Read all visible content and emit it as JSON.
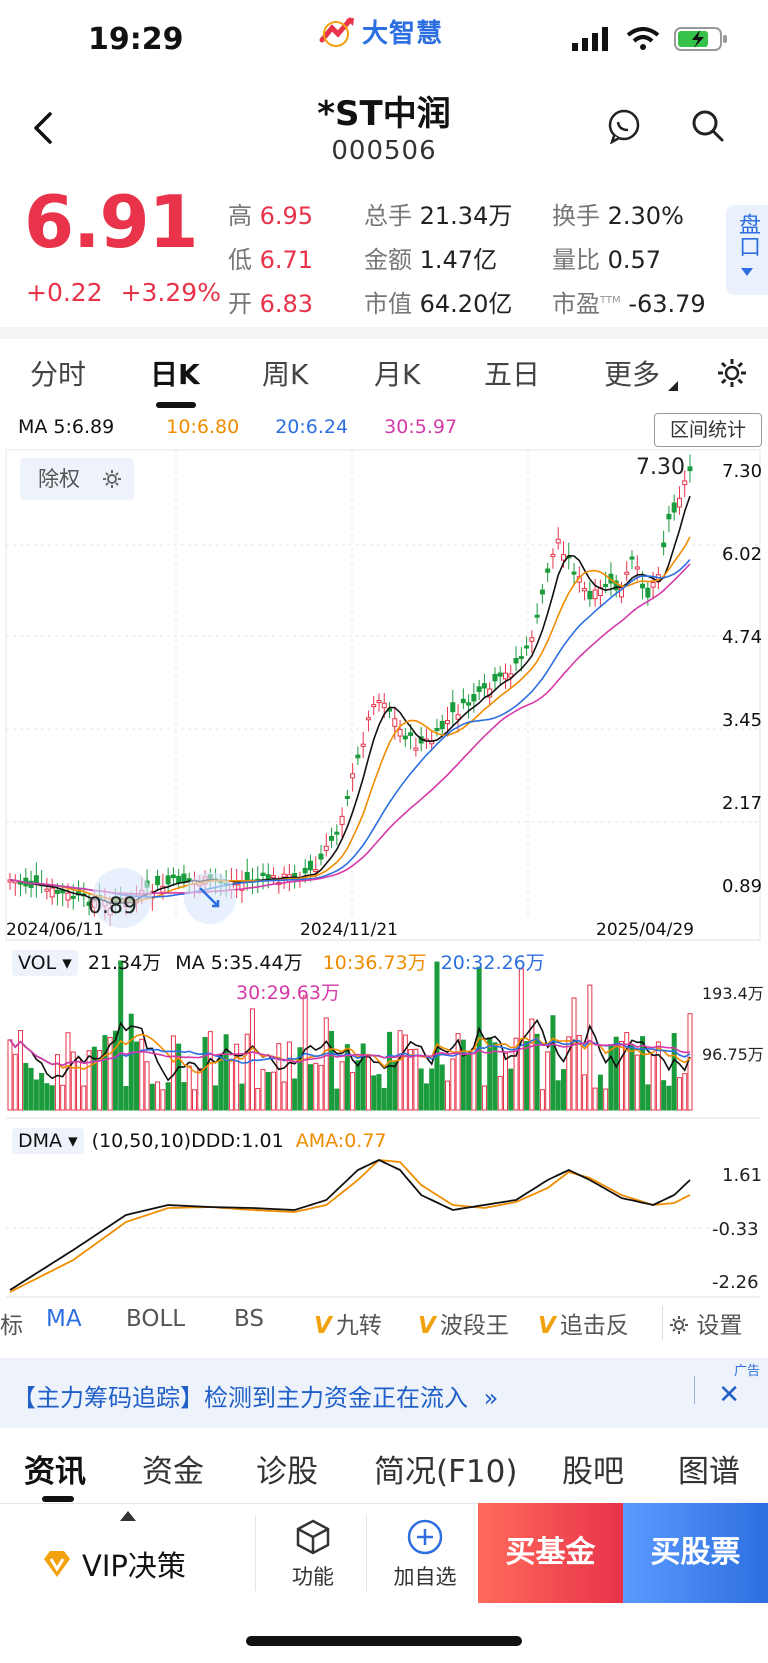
{
  "status": {
    "time": "19:29"
  },
  "app": {
    "logo_text": "大智慧"
  },
  "stock": {
    "name": "*ST中润",
    "code": "000506",
    "price": "6.91",
    "change": "+0.22",
    "change_pct": "+3.29%"
  },
  "quote": {
    "high_label": "高",
    "high": "6.95",
    "low_label": "低",
    "low": "6.71",
    "open_label": "开",
    "open": "6.83",
    "volume_label": "总手",
    "volume": "21.34万",
    "amount_label": "金额",
    "amount": "1.47亿",
    "mcap_label": "市值",
    "mcap": "64.20亿",
    "turnover_label": "换手",
    "turnover": "2.30%",
    "volratio_label": "量比",
    "volratio": "0.57",
    "pe_label": "市盈",
    "pe_sup": "TTM",
    "pe": "-63.79",
    "pankou": "盘口"
  },
  "period_tabs": [
    "分时",
    "日K",
    "周K",
    "月K",
    "五日",
    "更多"
  ],
  "ma": {
    "ma5": "MA 5:6.89",
    "ma10": "10:6.80",
    "ma20": "20:6.24",
    "ma30": "30:5.97"
  },
  "range_stat": "区间统计",
  "fuquan": "除权",
  "chart_labels": {
    "high_mark": "7.30",
    "low_mark": "0.89",
    "price_ticks": [
      "7.30",
      "6.02",
      "4.74",
      "3.45",
      "2.17",
      "0.89"
    ],
    "dates": [
      "2024/06/11",
      "2024/11/21",
      "2025/04/29"
    ]
  },
  "volume": {
    "label": "VOL",
    "value": "21.34万",
    "ma5": "MA 5:35.44万",
    "ma10": "10:36.73万",
    "ma20": "20:32.26万",
    "ma30": "30:29.63万",
    "ticks": [
      "193.4万",
      "96.75万"
    ]
  },
  "dma": {
    "label": "DMA",
    "params": "(10,50,10)DDD:1.01",
    "ama": "AMA:0.77",
    "ticks": [
      "1.61",
      "-0.33",
      "-2.26"
    ]
  },
  "indicator_tabs": {
    "partial": "标",
    "ma": "MA",
    "boll": "BOLL",
    "bs": "BS",
    "v1": "九转",
    "v2": "波段王",
    "v3": "追击反",
    "settings": "设置"
  },
  "ad": {
    "text": "【主力筹码追踪】检测到主力资金正在流入",
    "tag": "广告"
  },
  "news_tabs": [
    "资讯",
    "资金",
    "诊股",
    "简况(F10)",
    "股吧",
    "图谱"
  ],
  "bottom": {
    "vip": "VIP决策",
    "func": "功能",
    "addfav": "加自选",
    "buy_fund": "买基金",
    "buy_stock": "买股票"
  },
  "colors": {
    "up": "#e8334a",
    "down": "#1a9b3c",
    "accent": "#2d6fe0",
    "ma10": "#f08c00",
    "ma20": "#2d6fe0",
    "ma30": "#d63aa8"
  }
}
